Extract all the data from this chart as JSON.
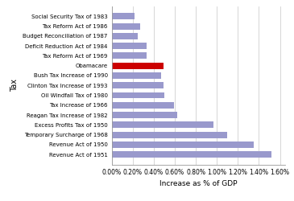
{
  "categories": [
    "Revenue Act of 1951",
    "Revenue Act of 1950",
    "Temporary Surcharge of 1968",
    "Excess Profits Tax of 1950",
    "Reagan Tax Increase of 1982",
    "Tax Increase of 1966",
    "Oil Windfall Tax of 1980",
    "Clinton Tax Increase of 1993",
    "Bush Tax Increase of 1990",
    "Obamacare",
    "Tax Reform Act of 1969",
    "Deficit Reduction Act of 1984",
    "Budget Reconciliation of 1987",
    "Tax Reform Act of 1986",
    "Social Security Tax of 1983"
  ],
  "values": [
    1.52,
    1.35,
    1.1,
    0.97,
    0.62,
    0.59,
    0.5,
    0.49,
    0.47,
    0.49,
    0.33,
    0.33,
    0.25,
    0.27,
    0.22
  ],
  "colors": [
    "#9999cc",
    "#9999cc",
    "#9999cc",
    "#9999cc",
    "#9999cc",
    "#9999cc",
    "#9999cc",
    "#9999cc",
    "#9999cc",
    "#cc0000",
    "#9999cc",
    "#9999cc",
    "#9999cc",
    "#9999cc",
    "#9999cc"
  ],
  "xlabel": "Increase as % of GDP",
  "ylabel": "Tax",
  "xtick_positions": [
    0.0,
    0.2,
    0.4,
    0.6,
    0.8,
    1.0,
    1.2,
    1.4,
    1.6
  ],
  "xtick_labels": [
    "0.00%",
    "0.20%",
    "0.40%",
    "0.60%",
    "0.80%",
    "1.00%",
    "1.20%",
    "1.40%",
    "1.60%"
  ],
  "xlim": [
    0,
    1.65
  ],
  "background_color": "#ffffff",
  "grid_color": "#d0d0d0",
  "bar_height": 0.65,
  "label_fontsize": 5.0,
  "xlabel_fontsize": 6.5,
  "ylabel_fontsize": 7.0,
  "xtick_fontsize": 5.5
}
